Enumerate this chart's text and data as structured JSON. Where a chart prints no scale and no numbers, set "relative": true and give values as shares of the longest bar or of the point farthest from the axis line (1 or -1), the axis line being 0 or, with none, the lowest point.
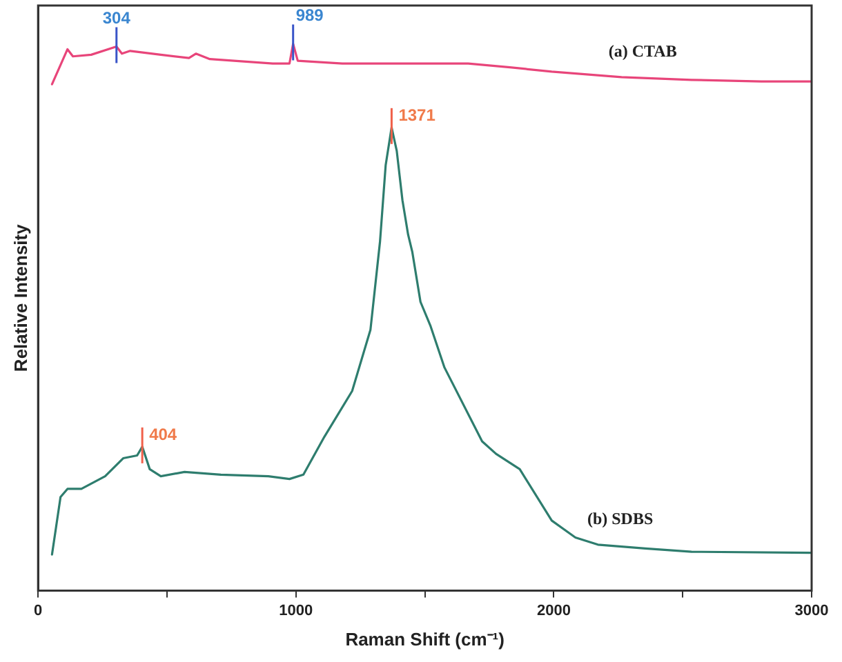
{
  "chart_data": {
    "type": "line",
    "xlabel": "Raman Shift (cm⁻¹)",
    "ylabel": "Relative Intensity",
    "relative": true,
    "xlim": [
      0,
      3000
    ],
    "xticks": [
      0,
      {
        "value": 500,
        "label": null
      },
      1000,
      {
        "value": 1500,
        "label": null
      },
      2000,
      {
        "value": 2500,
        "label": null
      },
      3000
    ],
    "grid": false,
    "legend": false,
    "marker": "none",
    "line_style": "solid",
    "series": [
      {
        "name": "(a) CTAB",
        "color": "#e8457a",
        "x": [
          54,
          114,
          135,
          206,
          304,
          325,
          357,
          476,
          585,
          612,
          666,
          910,
          975,
          989,
          1007,
          1180,
          1451,
          1668,
          1830,
          1992,
          2263,
          2534,
          2805,
          3000
        ],
        "values": [
          0.926,
          0.99,
          0.977,
          0.98,
          0.995,
          0.982,
          0.987,
          0.98,
          0.974,
          0.982,
          0.972,
          0.964,
          0.964,
          1.0,
          0.969,
          0.964,
          0.964,
          0.964,
          0.957,
          0.949,
          0.939,
          0.934,
          0.931,
          0.931
        ]
      },
      {
        "name": "(b) SDBS",
        "color": "#2e7d6e",
        "x": [
          54,
          87,
          114,
          168,
          260,
          330,
          384,
          404,
          433,
          476,
          568,
          709,
          893,
          975,
          1029,
          1110,
          1218,
          1289,
          1326,
          1348,
          1371,
          1391,
          1413,
          1435,
          1451,
          1483,
          1521,
          1576,
          1722,
          1776,
          1868,
          1992,
          2084,
          2171,
          2355,
          2534,
          3000
        ],
        "values": [
          0.066,
          0.171,
          0.186,
          0.186,
          0.209,
          0.242,
          0.247,
          0.263,
          0.222,
          0.209,
          0.217,
          0.212,
          0.209,
          0.204,
          0.212,
          0.281,
          0.365,
          0.477,
          0.638,
          0.778,
          0.847,
          0.804,
          0.714,
          0.651,
          0.62,
          0.528,
          0.485,
          0.408,
          0.273,
          0.25,
          0.222,
          0.128,
          0.097,
          0.084,
          0.077,
          0.071,
          0.069
        ]
      }
    ],
    "annotations": [
      {
        "text": "304",
        "x": 304,
        "y": 0.995
      },
      {
        "text": "989",
        "x": 989,
        "y": 1.0
      },
      {
        "text": "1371",
        "x": 1371,
        "y": 0.847
      },
      {
        "text": "404",
        "x": 404,
        "y": 0.263
      }
    ]
  }
}
